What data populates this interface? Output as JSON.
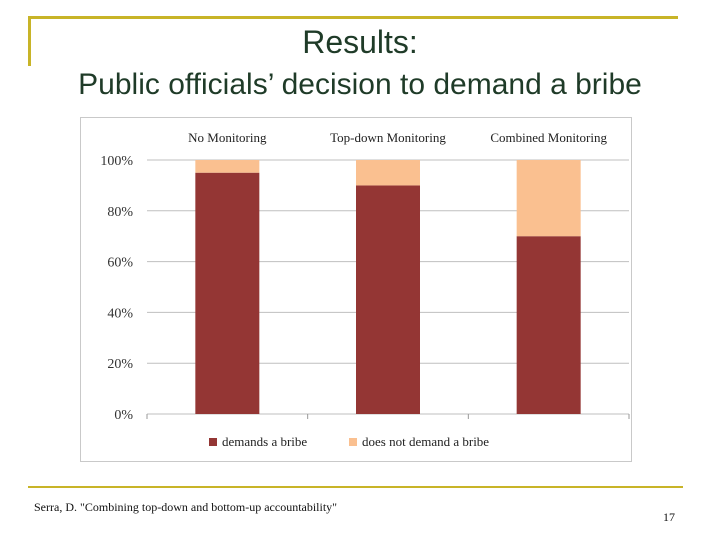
{
  "slide": {
    "title": "Results:",
    "subtitle": "Public officials’ decision to demand a bribe",
    "citation": "Serra, D. \"Combining top-down and bottom-up accountability\"",
    "page_number": "17"
  },
  "chart_data": {
    "type": "bar",
    "stacked": true,
    "categories": [
      "No Monitoring",
      "Top-down Monitoring",
      "Combined Monitoring"
    ],
    "series": [
      {
        "name": "demands a bribe",
        "values": [
          95,
          90,
          70
        ],
        "color": "#943634"
      },
      {
        "name": "does not demand a bribe",
        "values": [
          5,
          10,
          30
        ],
        "color": "#fac090"
      }
    ],
    "yticks": [
      "0%",
      "20%",
      "40%",
      "60%",
      "80%",
      "100%"
    ],
    "ylim": [
      0,
      100
    ],
    "grid": true,
    "legend_position": "bottom",
    "category_labels_position": "top"
  }
}
